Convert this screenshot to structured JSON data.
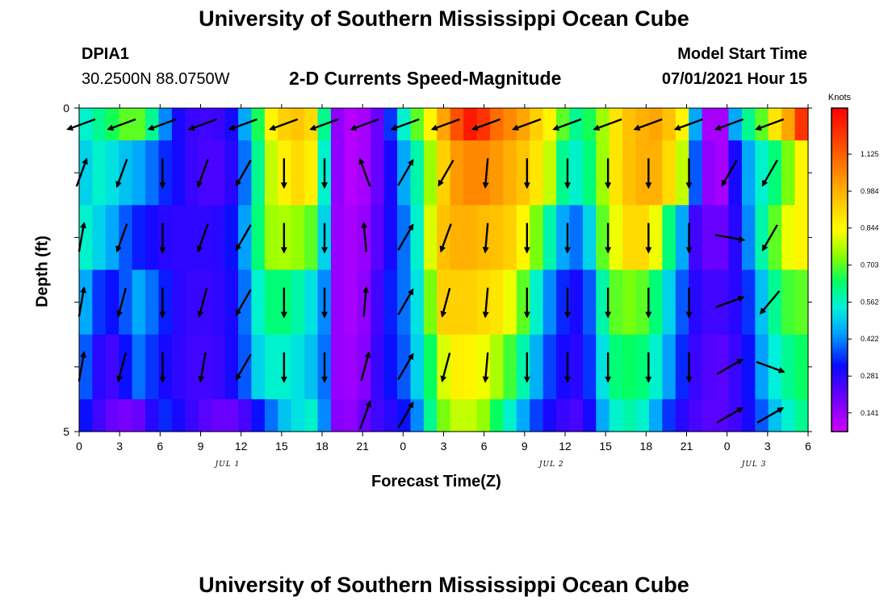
{
  "header": {
    "title": "University of Southern Mississippi Ocean Cube",
    "station_id": "DPIA1",
    "location": "30.2500N  88.0750W",
    "subtitle": "2-D Currents Speed-Magnitude",
    "model_start_label": "Model Start Time",
    "model_start_value": "07/01/2021 Hour 15"
  },
  "footer": {
    "title": "University of Southern Mississippi Ocean Cube"
  },
  "chart_data": {
    "type": "heatmap",
    "xlabel": "Forecast Time(Z)",
    "ylabel": "Depth (ft)",
    "x_tick_labels": [
      "0",
      "3",
      "6",
      "9",
      "12",
      "15",
      "18",
      "21",
      "0",
      "3",
      "6",
      "9",
      "12",
      "15",
      "18",
      "21",
      "0",
      "3",
      "6"
    ],
    "x_date_labels": [
      {
        "label": "JUL 1",
        "at_hour": 11
      },
      {
        "label": "JUL 2",
        "at_hour": 35
      },
      {
        "label": "JUL 3",
        "at_hour": 50
      }
    ],
    "x_range_hours": [
      0,
      54
    ],
    "y_tick_labels": [
      "0",
      "5"
    ],
    "y_range": [
      0,
      5
    ],
    "depth_levels": [
      0,
      1,
      2,
      3,
      4,
      5
    ],
    "colorbar": {
      "title": "Knots",
      "ticks": [
        0.141,
        0.281,
        0.422,
        0.562,
        0.703,
        0.844,
        0.984,
        1.125
      ],
      "range": [
        0.07,
        1.3
      ]
    },
    "speed_knots": [
      {
        "depth": 0.25,
        "values": [
          0.55,
          0.6,
          0.65,
          0.7,
          0.7,
          0.6,
          0.42,
          0.3,
          0.26,
          0.25,
          0.26,
          0.3,
          0.45,
          0.65,
          0.85,
          0.92,
          0.94,
          0.9,
          0.6,
          0.15,
          0.1,
          0.12,
          0.2,
          0.35,
          0.55,
          0.7,
          0.85,
          1.0,
          1.15,
          1.25,
          1.2,
          1.1,
          1.05,
          1.0,
          0.92,
          0.85,
          0.7,
          0.6,
          0.65,
          0.75,
          0.88,
          0.95,
          0.98,
          1.0,
          0.95,
          0.85,
          0.45,
          0.12,
          0.12,
          0.45,
          0.6,
          0.7,
          0.88,
          1.0,
          1.2
        ]
      },
      {
        "depth": 1.0,
        "values": [
          0.5,
          0.55,
          0.52,
          0.48,
          0.45,
          0.4,
          0.34,
          0.3,
          0.26,
          0.24,
          0.24,
          0.28,
          0.4,
          0.6,
          0.78,
          0.86,
          0.9,
          0.86,
          0.55,
          0.15,
          0.1,
          0.12,
          0.2,
          0.3,
          0.45,
          0.58,
          0.75,
          0.92,
          1.02,
          1.05,
          1.05,
          1.02,
          0.98,
          0.94,
          0.88,
          0.78,
          0.6,
          0.55,
          0.62,
          0.75,
          0.88,
          0.95,
          0.98,
          0.98,
          0.9,
          0.78,
          0.38,
          0.15,
          0.12,
          0.3,
          0.45,
          0.55,
          0.62,
          0.72,
          0.85
        ]
      },
      {
        "depth": 2.0,
        "values": [
          0.55,
          0.5,
          0.45,
          0.38,
          0.33,
          0.3,
          0.28,
          0.27,
          0.27,
          0.27,
          0.28,
          0.32,
          0.44,
          0.62,
          0.75,
          0.76,
          0.74,
          0.7,
          0.5,
          0.14,
          0.12,
          0.14,
          0.22,
          0.3,
          0.4,
          0.55,
          0.8,
          0.95,
          0.98,
          0.98,
          0.96,
          0.95,
          0.92,
          0.85,
          0.72,
          0.58,
          0.45,
          0.4,
          0.5,
          0.7,
          0.82,
          0.9,
          0.9,
          0.82,
          0.62,
          0.45,
          0.25,
          0.2,
          0.2,
          0.28,
          0.42,
          0.58,
          0.7,
          0.82,
          0.85
        ]
      },
      {
        "depth": 3.0,
        "values": [
          0.45,
          0.35,
          0.32,
          0.38,
          0.45,
          0.4,
          0.33,
          0.28,
          0.26,
          0.26,
          0.27,
          0.3,
          0.4,
          0.55,
          0.62,
          0.62,
          0.58,
          0.52,
          0.42,
          0.14,
          0.12,
          0.15,
          0.25,
          0.33,
          0.4,
          0.52,
          0.72,
          0.92,
          0.92,
          0.92,
          0.9,
          0.88,
          0.82,
          0.7,
          0.55,
          0.42,
          0.34,
          0.3,
          0.38,
          0.58,
          0.7,
          0.72,
          0.7,
          0.62,
          0.5,
          0.38,
          0.28,
          0.25,
          0.25,
          0.28,
          0.35,
          0.48,
          0.6,
          0.68,
          0.7
        ]
      },
      {
        "depth": 4.0,
        "values": [
          0.38,
          0.28,
          0.25,
          0.32,
          0.4,
          0.35,
          0.3,
          0.27,
          0.25,
          0.25,
          0.26,
          0.3,
          0.38,
          0.5,
          0.55,
          0.55,
          0.52,
          0.48,
          0.4,
          0.14,
          0.13,
          0.16,
          0.26,
          0.32,
          0.38,
          0.5,
          0.64,
          0.8,
          0.86,
          0.85,
          0.82,
          0.76,
          0.68,
          0.58,
          0.46,
          0.36,
          0.3,
          0.28,
          0.35,
          0.52,
          0.62,
          0.64,
          0.62,
          0.55,
          0.44,
          0.34,
          0.26,
          0.23,
          0.22,
          0.26,
          0.32,
          0.44,
          0.54,
          0.6,
          0.64
        ]
      },
      {
        "depth": 4.75,
        "values": [
          0.32,
          0.25,
          0.2,
          0.18,
          0.2,
          0.28,
          0.34,
          0.3,
          0.26,
          0.22,
          0.2,
          0.2,
          0.24,
          0.32,
          0.4,
          0.48,
          0.52,
          0.55,
          0.42,
          0.16,
          0.15,
          0.2,
          0.25,
          0.28,
          0.32,
          0.42,
          0.6,
          0.72,
          0.78,
          0.78,
          0.74,
          0.64,
          0.55,
          0.45,
          0.36,
          0.3,
          0.26,
          0.24,
          0.3,
          0.45,
          0.55,
          0.58,
          0.55,
          0.45,
          0.35,
          0.28,
          0.24,
          0.22,
          0.22,
          0.25,
          0.3,
          0.38,
          0.48,
          0.55,
          0.6
        ]
      }
    ],
    "vectors": [
      {
        "depth": 0.25,
        "points": [
          [
            0,
            250
          ],
          [
            3,
            250
          ],
          [
            6,
            250
          ],
          [
            9,
            250
          ],
          [
            12,
            250
          ],
          [
            15,
            250
          ],
          [
            18,
            250
          ],
          [
            21,
            250
          ],
          [
            24,
            250
          ],
          [
            27,
            250
          ],
          [
            30,
            250
          ],
          [
            33,
            250
          ],
          [
            36,
            250
          ],
          [
            39,
            250
          ],
          [
            42,
            250
          ],
          [
            45,
            250
          ],
          [
            48,
            250
          ],
          [
            51,
            250
          ]
        ]
      },
      {
        "depth": 1.0,
        "points": [
          [
            0,
            20
          ],
          [
            3,
            200
          ],
          [
            6,
            180
          ],
          [
            9,
            200
          ],
          [
            12,
            210
          ],
          [
            15,
            180
          ],
          [
            18,
            180
          ],
          [
            21,
            340
          ],
          [
            24,
            30
          ],
          [
            27,
            210
          ],
          [
            30,
            185
          ],
          [
            33,
            180
          ],
          [
            36,
            180
          ],
          [
            39,
            180
          ],
          [
            42,
            180
          ],
          [
            45,
            180
          ],
          [
            48,
            210
          ],
          [
            51,
            210
          ]
        ]
      },
      {
        "depth": 2.0,
        "points": [
          [
            0,
            10
          ],
          [
            3,
            200
          ],
          [
            6,
            180
          ],
          [
            9,
            200
          ],
          [
            12,
            210
          ],
          [
            15,
            180
          ],
          [
            18,
            180
          ],
          [
            21,
            355
          ],
          [
            24,
            30
          ],
          [
            27,
            200
          ],
          [
            30,
            185
          ],
          [
            33,
            180
          ],
          [
            36,
            180
          ],
          [
            39,
            180
          ],
          [
            42,
            180
          ],
          [
            45,
            180
          ],
          [
            48,
            100
          ],
          [
            51,
            210
          ]
        ]
      },
      {
        "depth": 3.0,
        "points": [
          [
            0,
            10
          ],
          [
            3,
            195
          ],
          [
            6,
            180
          ],
          [
            9,
            195
          ],
          [
            12,
            210
          ],
          [
            15,
            180
          ],
          [
            18,
            180
          ],
          [
            21,
            5
          ],
          [
            24,
            30
          ],
          [
            27,
            195
          ],
          [
            30,
            185
          ],
          [
            33,
            180
          ],
          [
            36,
            180
          ],
          [
            39,
            180
          ],
          [
            42,
            180
          ],
          [
            45,
            180
          ],
          [
            48,
            70
          ],
          [
            51,
            220
          ]
        ]
      },
      {
        "depth": 4.0,
        "points": [
          [
            0,
            10
          ],
          [
            3,
            195
          ],
          [
            6,
            180
          ],
          [
            9,
            190
          ],
          [
            12,
            210
          ],
          [
            15,
            180
          ],
          [
            18,
            180
          ],
          [
            21,
            15
          ],
          [
            24,
            30
          ],
          [
            27,
            195
          ],
          [
            30,
            185
          ],
          [
            33,
            180
          ],
          [
            36,
            180
          ],
          [
            39,
            180
          ],
          [
            42,
            180
          ],
          [
            45,
            180
          ],
          [
            48,
            60
          ],
          [
            51,
            110
          ]
        ]
      },
      {
        "depth": 4.75,
        "points": [
          [
            24,
            30
          ],
          [
            21,
            20
          ],
          [
            48,
            60
          ],
          [
            51,
            60
          ]
        ]
      }
    ]
  }
}
